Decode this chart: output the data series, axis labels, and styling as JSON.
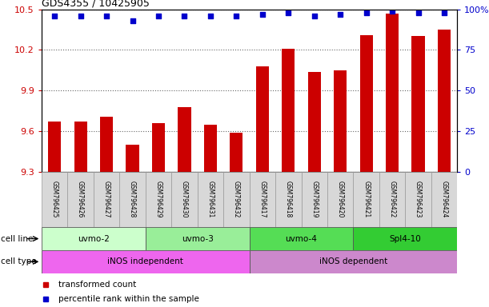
{
  "title": "GDS4355 / 10425905",
  "samples": [
    "GSM796425",
    "GSM796426",
    "GSM796427",
    "GSM796428",
    "GSM796429",
    "GSM796430",
    "GSM796431",
    "GSM796432",
    "GSM796417",
    "GSM796418",
    "GSM796419",
    "GSM796420",
    "GSM796421",
    "GSM796422",
    "GSM796423",
    "GSM796424"
  ],
  "bar_values": [
    9.67,
    9.67,
    9.71,
    9.5,
    9.66,
    9.78,
    9.65,
    9.59,
    10.08,
    10.21,
    10.04,
    10.05,
    10.31,
    10.47,
    10.3,
    10.35
  ],
  "dot_values": [
    96,
    96,
    96,
    93,
    96,
    96,
    96,
    96,
    97,
    98,
    96,
    97,
    98,
    99,
    98,
    98
  ],
  "ylim": [
    9.3,
    10.5
  ],
  "yticks": [
    9.3,
    9.6,
    9.9,
    10.2,
    10.5
  ],
  "y2ticks": [
    0,
    25,
    50,
    75,
    100
  ],
  "bar_color": "#cc0000",
  "dot_color": "#0000cc",
  "cell_line_groups": [
    {
      "label": "uvmo-2",
      "start": 0,
      "end": 3,
      "color": "#ccffcc"
    },
    {
      "label": "uvmo-3",
      "start": 4,
      "end": 7,
      "color": "#99ee99"
    },
    {
      "label": "uvmo-4",
      "start": 8,
      "end": 11,
      "color": "#55dd55"
    },
    {
      "label": "Spl4-10",
      "start": 12,
      "end": 15,
      "color": "#33cc33"
    }
  ],
  "cell_type_groups": [
    {
      "label": "iNOS independent",
      "start": 0,
      "end": 7,
      "color": "#ee66ee"
    },
    {
      "label": "iNOS dependent",
      "start": 8,
      "end": 15,
      "color": "#cc88cc"
    }
  ],
  "left_ylabel_color": "#cc0000",
  "right_ylabel_color": "#0000cc",
  "legend_items": [
    "transformed count",
    "percentile rank within the sample"
  ],
  "legend_colors": [
    "#cc0000",
    "#0000cc"
  ]
}
